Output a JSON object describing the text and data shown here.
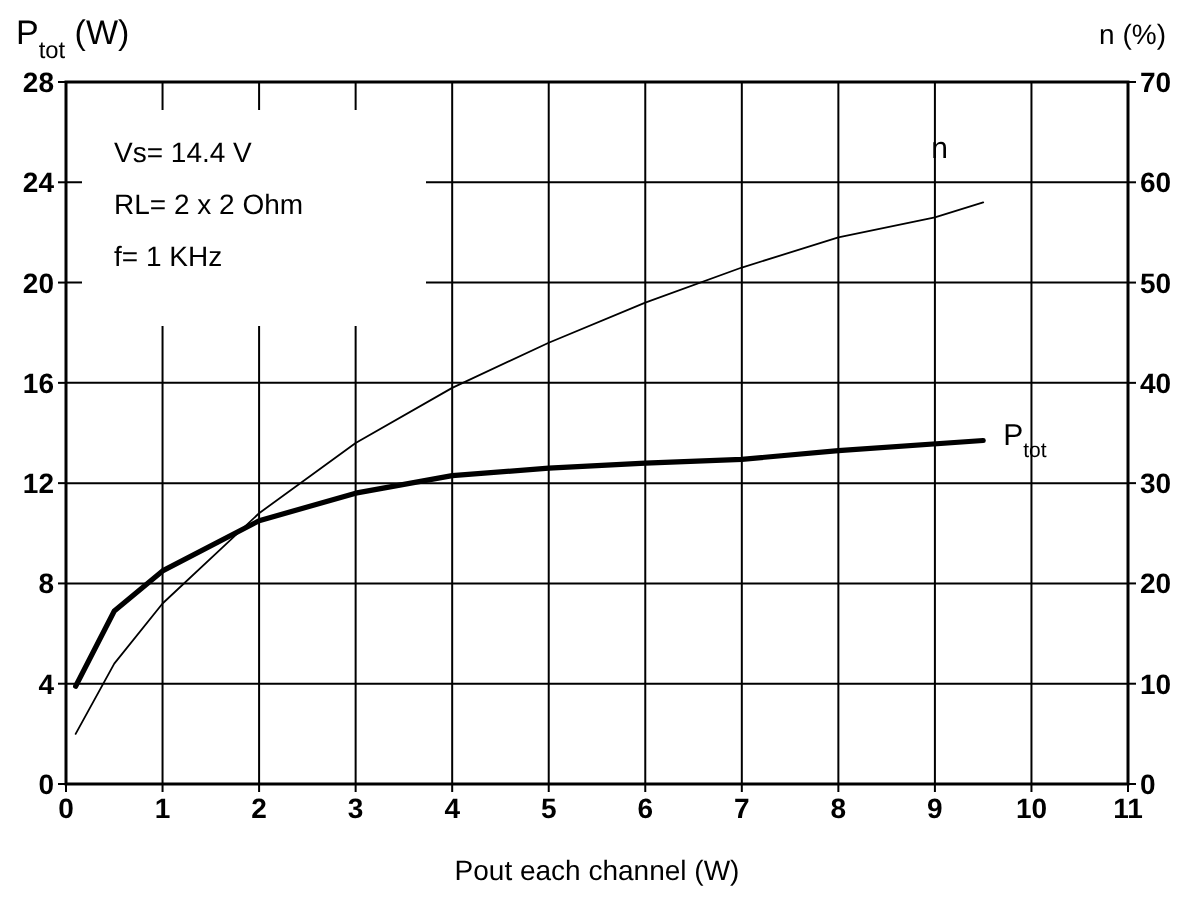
{
  "chart_data": {
    "type": "line",
    "ylabel": "P$_{tot}$ (W)",
    "y2label": "n (%)",
    "xlabel": "Pout each channel (W)",
    "xlim": [
      0,
      11
    ],
    "xticks": [
      0,
      1,
      2,
      3,
      4,
      5,
      6,
      7,
      8,
      9,
      10,
      11
    ],
    "ylim": [
      0,
      28
    ],
    "yticks": [
      0,
      4,
      8,
      12,
      16,
      20,
      24,
      28
    ],
    "y2lim": [
      0,
      70
    ],
    "y2ticks": [
      0,
      10,
      20,
      30,
      40,
      50,
      60,
      70
    ],
    "grid": true,
    "marker": "none",
    "line_style": "solid",
    "annotations": [
      "Vs= 14.4 V",
      "RL= 2 x 2 Ohm",
      "f= 1 KHz"
    ],
    "series": [
      {
        "name": "P$_{tot}$",
        "color": "#000000",
        "x": [
          0.1,
          0.5,
          1,
          2,
          3,
          4,
          5,
          6,
          7,
          8,
          9.5
        ],
        "values": [
          3.9,
          6.9,
          8.5,
          10.5,
          11.6,
          12.3,
          12.6,
          12.8,
          12.95,
          13.3,
          13.7
        ]
      },
      {
        "name": "n",
        "color": "#000000",
        "axis": "y2",
        "x": [
          0.1,
          0.5,
          1,
          2,
          3,
          4,
          5,
          6,
          7,
          8,
          9,
          9.5
        ],
        "values": [
          5,
          12,
          18,
          27,
          34,
          39.5,
          44,
          48,
          51.5,
          54.5,
          56.5,
          58
        ]
      }
    ]
  }
}
